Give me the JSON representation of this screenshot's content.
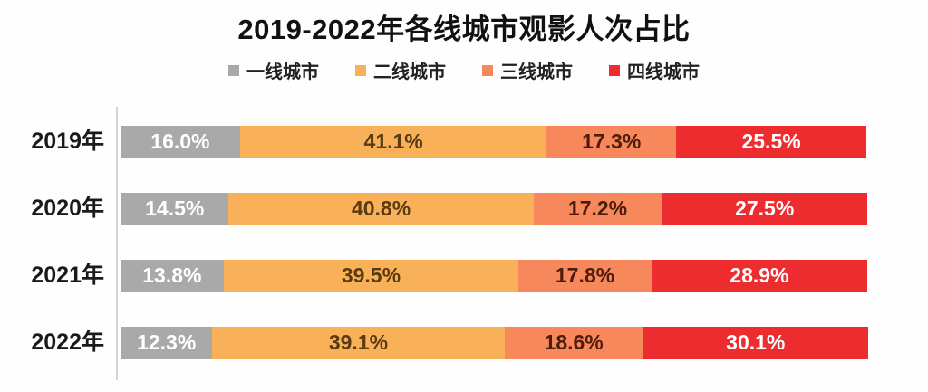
{
  "title": "2019-2022年各线城市观影人次占比",
  "legend": [
    {
      "label": "一线城市",
      "color": "#a9a9a9"
    },
    {
      "label": "二线城市",
      "color": "#f8b159"
    },
    {
      "label": "三线城市",
      "color": "#f6885c"
    },
    {
      "label": "四线城市",
      "color": "#ed2c30"
    }
  ],
  "chart_data": {
    "type": "bar",
    "orientation": "horizontal",
    "stacked": true,
    "title": "2019-2022年各线城市观影人次占比",
    "categories": [
      "2019年",
      "2020年",
      "2021年",
      "2022年"
    ],
    "series": [
      {
        "name": "一线城市",
        "color": "#a9a9a9",
        "label_color": "#ffffff",
        "values": [
          16.0,
          14.5,
          13.8,
          12.3
        ]
      },
      {
        "name": "二线城市",
        "color": "#f8b159",
        "label_color": "#5a3a10",
        "values": [
          41.1,
          40.8,
          39.5,
          39.1
        ]
      },
      {
        "name": "三线城市",
        "color": "#f6885c",
        "label_color": "#4d1c0a",
        "values": [
          17.3,
          17.2,
          17.8,
          18.6
        ]
      },
      {
        "name": "四线城市",
        "color": "#ed2c30",
        "label_color": "#ffffff",
        "values": [
          25.5,
          27.5,
          28.9,
          30.1
        ]
      }
    ],
    "value_suffix": "%",
    "xlim": [
      0,
      100
    ],
    "grid": false,
    "legend_position": "top",
    "axis_line_color": "#d4d4d4"
  }
}
